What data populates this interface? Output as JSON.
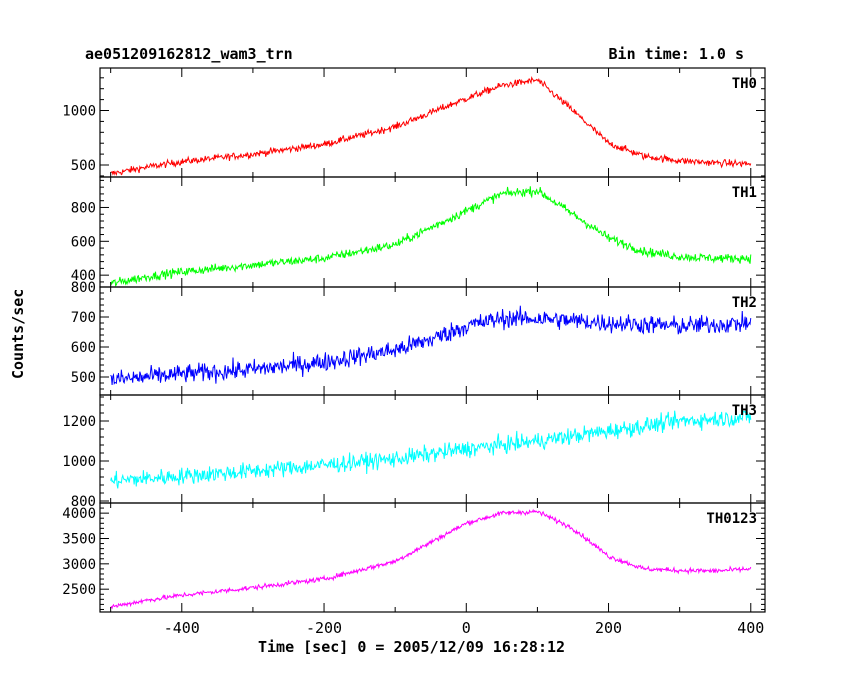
{
  "header": {
    "title": "ae051209162812_wam3_trn",
    "bin_time": "Bin time: 1.0 s"
  },
  "chart_data": {
    "type": "line",
    "xlabel": "Time [sec] 0 = 2005/12/09 16:28:12",
    "ylabel": "Counts/sec",
    "xlim": [
      -515,
      420
    ],
    "xticks": [
      -400,
      -200,
      0,
      200,
      400
    ],
    "series": [
      {
        "name": "TH0",
        "color": "#ff0000",
        "ylim": [
          390,
          1390
        ],
        "yticks": [
          500,
          1000
        ],
        "noise": 30,
        "x": [
          -500,
          -450,
          -400,
          -300,
          -200,
          -100,
          0,
          50,
          100,
          150,
          200,
          250,
          300,
          350,
          400
        ],
        "y": [
          420,
          480,
          530,
          600,
          690,
          850,
          1110,
          1230,
          1280,
          1000,
          700,
          580,
          540,
          520,
          510
        ]
      },
      {
        "name": "TH1",
        "color": "#00ff00",
        "ylim": [
          330,
          980
        ],
        "yticks": [
          400,
          600,
          800
        ],
        "noise": 25,
        "x": [
          -500,
          -450,
          -400,
          -300,
          -200,
          -100,
          0,
          50,
          100,
          150,
          200,
          250,
          300,
          350,
          400
        ],
        "y": [
          350,
          390,
          420,
          460,
          500,
          580,
          780,
          880,
          900,
          760,
          620,
          540,
          510,
          500,
          500
        ]
      },
      {
        "name": "TH2",
        "color": "#0000ff",
        "ylim": [
          440,
          800
        ],
        "yticks": [
          500,
          600,
          700,
          800
        ],
        "noise": 30,
        "x": [
          -500,
          -400,
          -300,
          -200,
          -100,
          -50,
          0,
          50,
          100,
          200,
          300,
          400
        ],
        "y": [
          490,
          510,
          525,
          550,
          590,
          625,
          670,
          695,
          695,
          680,
          670,
          680
        ]
      },
      {
        "name": "TH3",
        "color": "#00ffff",
        "ylim": [
          790,
          1330
        ],
        "yticks": [
          800,
          1000,
          1200
        ],
        "noise": 40,
        "x": [
          -500,
          -400,
          -300,
          -200,
          -100,
          0,
          100,
          200,
          300,
          400
        ],
        "y": [
          900,
          925,
          950,
          980,
          1010,
          1060,
          1100,
          1150,
          1200,
          1220
        ]
      },
      {
        "name": "TH0123",
        "color": "#ff00ff",
        "ylim": [
          2050,
          4200
        ],
        "yticks": [
          2500,
          3000,
          3500,
          4000
        ],
        "noise": 45,
        "x": [
          -500,
          -450,
          -400,
          -300,
          -200,
          -100,
          0,
          50,
          100,
          150,
          200,
          250,
          300,
          350,
          400
        ],
        "y": [
          2150,
          2280,
          2380,
          2530,
          2700,
          3050,
          3800,
          4000,
          4030,
          3700,
          3150,
          2900,
          2870,
          2860,
          2900
        ]
      }
    ]
  }
}
